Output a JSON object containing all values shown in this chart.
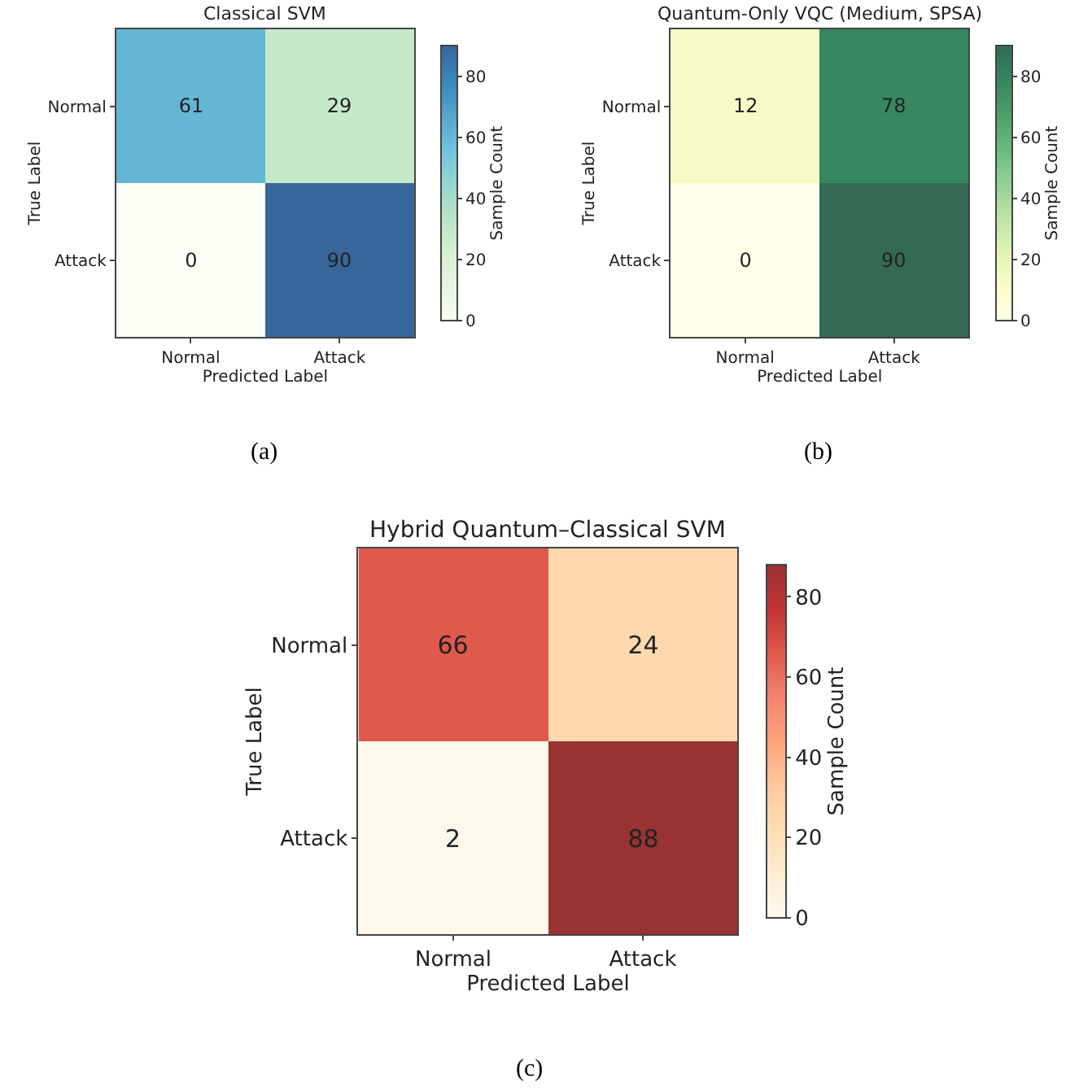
{
  "chart_data": [
    {
      "type": "heatmap",
      "title": "Classical SVM",
      "xlabel": "Predicted Label",
      "ylabel": "True Label",
      "clabel": "Sample Count",
      "categories": [
        "Normal",
        "Attack"
      ],
      "y_categories": [
        "Normal",
        "Attack"
      ],
      "cells": [
        [
          61,
          29
        ],
        [
          0,
          90
        ]
      ],
      "clim": [
        0,
        90
      ],
      "cticks": [
        0,
        20,
        40,
        60,
        80
      ],
      "data_labels": true,
      "annotations": [
        "(a)"
      ]
    },
    {
      "type": "heatmap",
      "title": "Quantum-Only VQC (Medium, SPSA)",
      "xlabel": "Predicted Label",
      "ylabel": "True Label",
      "clabel": "Sample Count",
      "categories": [
        "Normal",
        "Attack"
      ],
      "y_categories": [
        "Normal",
        "Attack"
      ],
      "cells": [
        [
          12,
          78
        ],
        [
          0,
          90
        ]
      ],
      "clim": [
        0,
        90
      ],
      "cticks": [
        0,
        20,
        40,
        60,
        80
      ],
      "data_labels": true,
      "annotations": [
        "(b)"
      ]
    },
    {
      "type": "heatmap",
      "title": "Hybrid Quantum–Classical SVM",
      "xlabel": "Predicted Label",
      "ylabel": "True Label",
      "clabel": "Sample Count",
      "categories": [
        "Normal",
        "Attack"
      ],
      "y_categories": [
        "Normal",
        "Attack"
      ],
      "cells": [
        [
          66,
          24
        ],
        [
          2,
          88
        ]
      ],
      "clim": [
        0,
        88
      ],
      "cticks": [
        0,
        20,
        40,
        60,
        80
      ],
      "data_labels": true,
      "annotations": [
        "(c)"
      ]
    }
  ]
}
